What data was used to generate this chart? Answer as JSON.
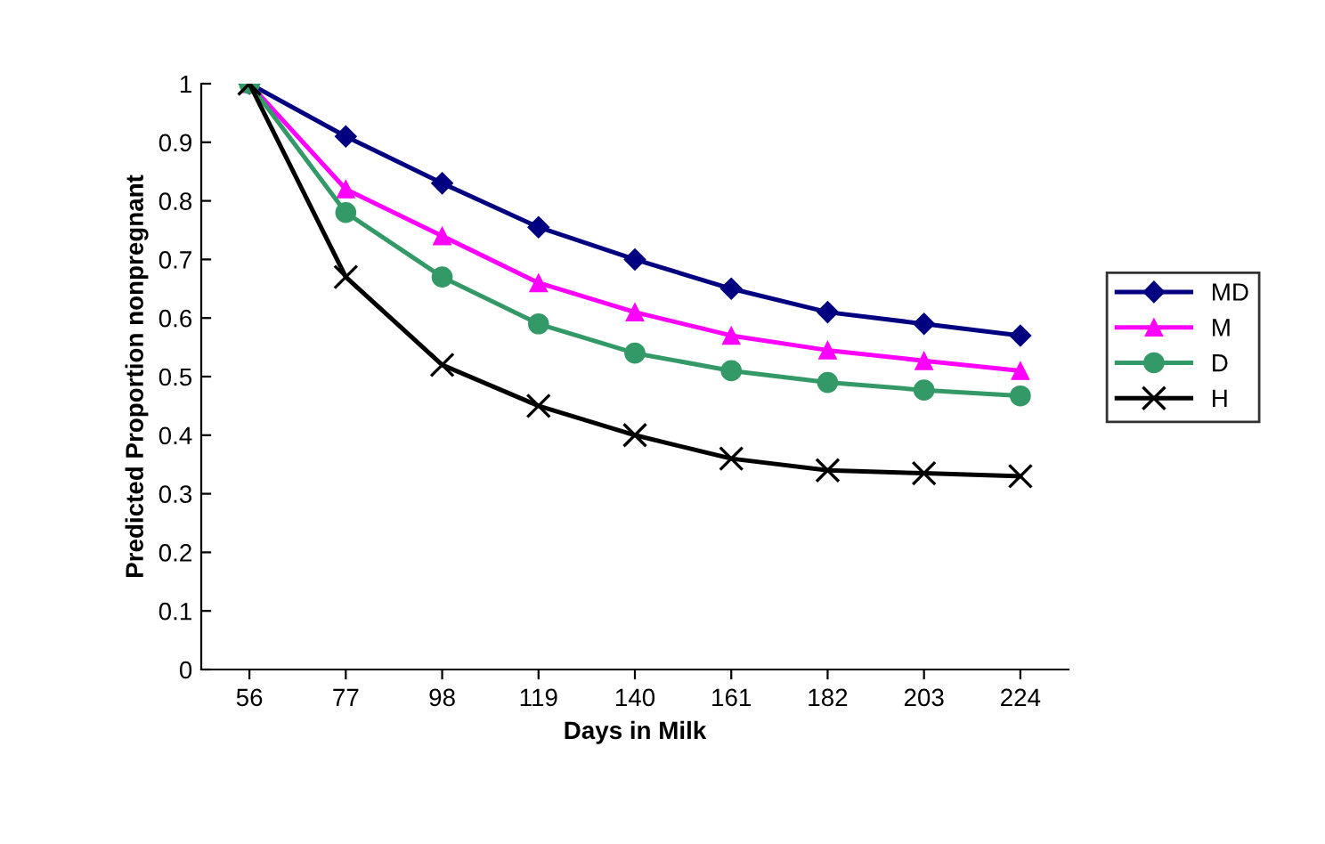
{
  "chart_data": {
    "type": "line",
    "xlabel": "Days in Milk",
    "ylabel": "Predicted Proportion nonpregnant",
    "categories": [
      "56",
      "77",
      "98",
      "119",
      "140",
      "161",
      "182",
      "203",
      "224"
    ],
    "ylim": [
      0,
      1
    ],
    "yticks": [
      0,
      {
        "value": 0.1,
        "label": "0.1"
      },
      {
        "value": 0.2,
        "label": "0.2"
      },
      {
        "value": 0.3,
        "label": "0.3"
      },
      {
        "value": 0.4,
        "label": "0.4"
      },
      {
        "value": 0.5,
        "label": "0.5"
      },
      {
        "value": 0.6,
        "label": "0.6"
      },
      {
        "value": 0.7,
        "label": "0.7"
      },
      {
        "value": 0.8,
        "label": "0.8"
      },
      {
        "value": 0.9,
        "label": "0.9"
      },
      1
    ],
    "grid": false,
    "legend": "right",
    "line_style": "solid",
    "series": [
      {
        "name": "MD",
        "color": "#000080",
        "marker": "diamond",
        "values": [
          1,
          0.91,
          0.83,
          0.755,
          0.7,
          0.65,
          0.61,
          0.59,
          0.57
        ]
      },
      {
        "name": "M",
        "color": "#ff00ff",
        "marker": "triangle",
        "values": [
          1,
          0.82,
          0.74,
          0.66,
          0.61,
          0.57,
          0.545,
          0.527,
          0.51
        ]
      },
      {
        "name": "D",
        "color": "#339966",
        "marker": "circle",
        "values": [
          1,
          0.78,
          0.67,
          0.59,
          0.54,
          0.51,
          0.49,
          0.477,
          0.467
        ]
      },
      {
        "name": "H",
        "color": "#000000",
        "marker": "cross",
        "values": [
          1,
          0.67,
          0.52,
          0.45,
          0.4,
          0.36,
          0.34,
          0.335,
          0.33
        ]
      }
    ]
  }
}
